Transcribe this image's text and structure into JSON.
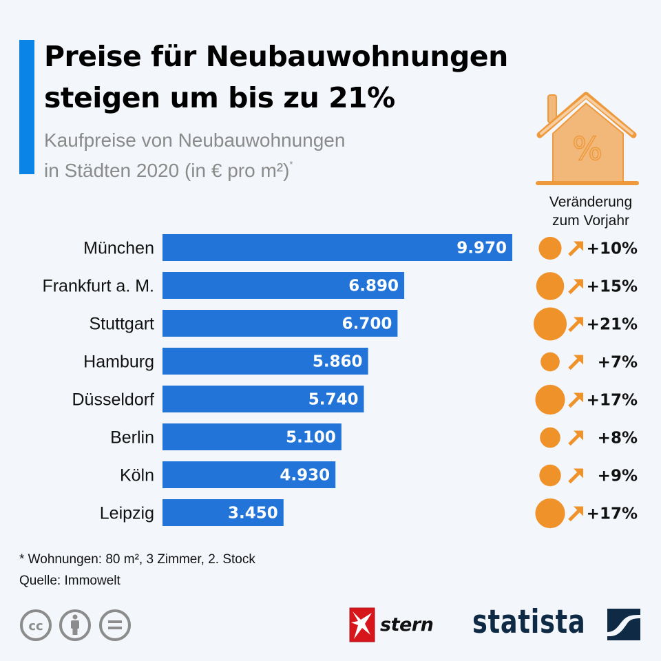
{
  "header": {
    "title_line1": "Preise für Neubauwohnungen",
    "title_line2": "steigen um bis zu 21%",
    "subtitle_line1": "Kaufpreise von Neubauwohnungen",
    "subtitle_line2": "in Städten 2020 (in € pro m²)",
    "subtitle_marker": "*"
  },
  "legend": {
    "icon": "house-percent-icon",
    "label_line1": "Veränderung",
    "label_line2": "zum Vorjahr"
  },
  "colors": {
    "accent": "#0a84e6",
    "bar": "#2274d8",
    "change": "#f0922a",
    "house": "#f2b87a",
    "statista": "#0f2a44",
    "stern_red": "#d7161b"
  },
  "chart_data": {
    "type": "bar",
    "orientation": "horizontal",
    "title": "Preise für Neubauwohnungen steigen um bis zu 21%",
    "subtitle": "Kaufpreise von Neubauwohnungen in Städten 2020 (in € pro m²)*",
    "xlabel": "",
    "ylabel": "",
    "unit": "€ pro m²",
    "categories": [
      "München",
      "Frankfurt a. M.",
      "Stuttgart",
      "Hamburg",
      "Düsseldorf",
      "Berlin",
      "Köln",
      "Leipzig"
    ],
    "values": [
      9970,
      6890,
      6700,
      5860,
      5740,
      5100,
      4930,
      3450
    ],
    "value_labels": [
      "9.970",
      "6.890",
      "6.700",
      "5.860",
      "5.740",
      "5.100",
      "4.930",
      "3.450"
    ],
    "xlim": [
      0,
      9970
    ],
    "grid": false,
    "series": [
      {
        "name": "Kaufpreis 2020 (€ pro m²)",
        "values": [
          9970,
          6890,
          6700,
          5860,
          5740,
          5100,
          4930,
          3450
        ]
      },
      {
        "name": "Veränderung zum Vorjahr (%)",
        "values": [
          10,
          15,
          21,
          7,
          17,
          8,
          9,
          17
        ],
        "labels": [
          "+10%",
          "+15%",
          "+21%",
          "+7%",
          "+17%",
          "+8%",
          "+9%",
          "+17%"
        ],
        "direction": "up",
        "encoding": "bubble"
      }
    ]
  },
  "footer": {
    "note": "* Wohnungen: 80 m², 3 Zimmer, 2. Stock",
    "source": "Quelle: Immowelt",
    "license_icons": [
      "creative-commons-icon",
      "attribution-icon",
      "no-derivatives-icon"
    ],
    "partner_logo": "stern",
    "brand": "statista"
  }
}
